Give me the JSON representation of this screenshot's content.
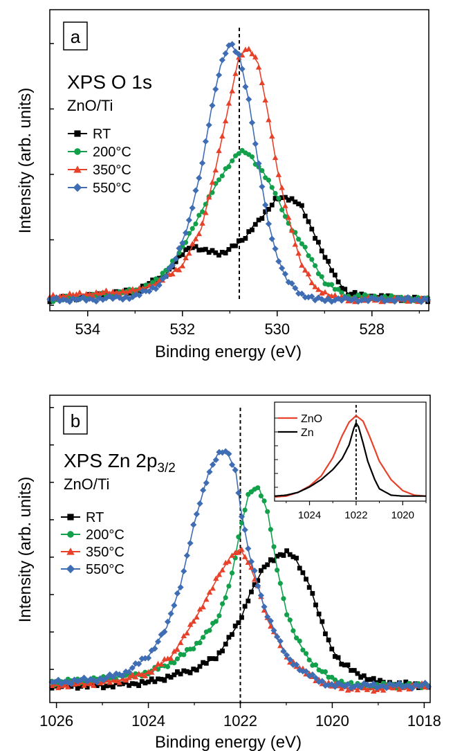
{
  "chart_data": [
    {
      "type": "line",
      "panel_label": "a",
      "title": "XPS O 1s",
      "subtitle": "ZnO/Ti",
      "xlabel": "Binding energy (eV)",
      "ylabel": "Intensity (arb. units)",
      "xlim": [
        534.8,
        526.8
      ],
      "x_reversed": true,
      "ylim": [
        0,
        100
      ],
      "x_ticks": [
        534,
        532,
        530,
        528
      ],
      "x_tick_labels": [
        "534",
        "532",
        "530",
        "528"
      ],
      "y_tick_labels_shown": false,
      "reference_line_x": 530.8,
      "legend_position": "left",
      "series": [
        {
          "name": "RT",
          "color": "#000000",
          "marker": "square",
          "x": [
            534.8,
            534,
            533,
            532.4,
            532,
            531.8,
            531.5,
            531.2,
            531,
            530.7,
            530.5,
            530.2,
            530,
            529.8,
            529.5,
            529.3,
            529,
            528.7,
            528.5,
            528,
            527,
            526.8
          ],
          "y": [
            2,
            3,
            5,
            10,
            18,
            21,
            19,
            18,
            20,
            23,
            28,
            33,
            38,
            38,
            35,
            28,
            17,
            8,
            4,
            3,
            2,
            2
          ]
        },
        {
          "name": "200°C",
          "color": "#12a04b",
          "marker": "circle",
          "x": [
            534.8,
            534,
            533,
            532.5,
            532,
            531.6,
            531.3,
            531,
            530.8,
            530.6,
            530.3,
            530,
            529.8,
            529.5,
            529.2,
            529,
            528.5,
            528,
            527,
            526.8
          ],
          "y": [
            2,
            3,
            5,
            9,
            20,
            33,
            42,
            50,
            54,
            53,
            47,
            38,
            30,
            22,
            14,
            8,
            3,
            3,
            2,
            2
          ]
        },
        {
          "name": "350°C",
          "color": "#e8412a",
          "marker": "triangle",
          "x": [
            534.8,
            534,
            533,
            532.5,
            532,
            531.6,
            531.3,
            531,
            530.8,
            530.6,
            530.4,
            530.2,
            530,
            529.8,
            529.5,
            529.2,
            528.8,
            528.5,
            528,
            527,
            526.8
          ],
          "y": [
            3,
            4,
            5,
            8,
            14,
            27,
            48,
            72,
            88,
            90,
            85,
            68,
            48,
            33,
            15,
            6,
            3,
            2,
            2,
            2,
            2
          ]
        },
        {
          "name": "550°C",
          "color": "#3f6db3",
          "marker": "diamond",
          "x": [
            534.8,
            534,
            533,
            532.5,
            532.2,
            531.9,
            531.6,
            531.4,
            531.2,
            531,
            530.8,
            530.6,
            530.4,
            530.2,
            530,
            529.8,
            529.5,
            529.2,
            528.8,
            528.5,
            528,
            527,
            526.8
          ],
          "y": [
            2,
            2,
            3,
            7,
            14,
            27,
            48,
            68,
            84,
            92,
            88,
            72,
            50,
            30,
            17,
            9,
            4,
            2,
            2,
            2,
            2,
            2,
            2
          ]
        }
      ]
    },
    {
      "type": "line",
      "panel_label": "b",
      "title": "XPS Zn 2p",
      "title_subscript": "3/2",
      "subtitle": "ZnO/Ti",
      "xlabel": "Binding energy (eV)",
      "ylabel": "Intensity (arb. units)",
      "xlim": [
        1026.1,
        1017.9
      ],
      "x_reversed": true,
      "ylim": [
        0,
        100
      ],
      "x_ticks": [
        1026,
        1024,
        1022,
        1020,
        1018
      ],
      "x_tick_labels": [
        "1026",
        "1024",
        "1022",
        "1020",
        "1018"
      ],
      "y_tick_labels_shown": false,
      "reference_line_x": 1022,
      "legend_position": "left",
      "series": [
        {
          "name": "RT",
          "color": "#000000",
          "marker": "square",
          "x": [
            1026,
            1025,
            1024,
            1023.5,
            1023,
            1022.5,
            1022,
            1021.8,
            1021.5,
            1021.2,
            1021,
            1020.8,
            1020.5,
            1020.2,
            1020,
            1019.8,
            1019.5,
            1019,
            1018
          ],
          "y": [
            2,
            2,
            3,
            5,
            7,
            11,
            22,
            30,
            38,
            42,
            43,
            41,
            33,
            20,
            13,
            9,
            6,
            3,
            2
          ]
        },
        {
          "name": "200°C",
          "color": "#12a04b",
          "marker": "circle",
          "x": [
            1026,
            1025,
            1024,
            1023.5,
            1023,
            1022.5,
            1022.2,
            1022,
            1021.8,
            1021.6,
            1021.4,
            1021.2,
            1021,
            1020.8,
            1020.5,
            1020.2,
            1020,
            1019.5,
            1019,
            1018
          ],
          "y": [
            3,
            4,
            6,
            9,
            14,
            22,
            35,
            50,
            62,
            63,
            55,
            38,
            25,
            17,
            10,
            6,
            4,
            2,
            2,
            2
          ]
        },
        {
          "name": "350°C",
          "color": "#e8412a",
          "marker": "triangle",
          "x": [
            1026,
            1025,
            1024.5,
            1024,
            1023.5,
            1023,
            1022.5,
            1022.2,
            1022,
            1021.8,
            1021.6,
            1021.4,
            1021,
            1020.6,
            1020.2,
            1020,
            1019.5,
            1019,
            1018
          ],
          "y": [
            2,
            3,
            4,
            6,
            11,
            22,
            35,
            42,
            44,
            39,
            32,
            22,
            11,
            6,
            3,
            2,
            1,
            1,
            2
          ]
        },
        {
          "name": "550°C",
          "color": "#3f6db3",
          "marker": "diamond",
          "x": [
            1026,
            1025,
            1024.5,
            1024,
            1023.6,
            1023.3,
            1023,
            1022.7,
            1022.5,
            1022.3,
            1022.1,
            1022,
            1021.8,
            1021.5,
            1021.2,
            1021,
            1020.6,
            1020.2,
            1020,
            1019.5,
            1019,
            1018
          ],
          "y": [
            3,
            4,
            6,
            11,
            20,
            33,
            52,
            67,
            73,
            74,
            68,
            57,
            42,
            27,
            17,
            11,
            6,
            3,
            2,
            2,
            2,
            2
          ]
        }
      ],
      "inset": {
        "xlim": [
          1025.5,
          1019
        ],
        "x_ticks": [
          1024,
          1022,
          1020
        ],
        "x_tick_labels": [
          "1024",
          "1022",
          "1020"
        ],
        "ylim": [
          0,
          100
        ],
        "reference_line_x": 1022,
        "legend_position": "top-left",
        "series": [
          {
            "name": "ZnO",
            "color": "#e8412a",
            "x": [
              1025.5,
              1025,
              1024.5,
              1024,
              1023.5,
              1023,
              1022.6,
              1022.3,
              1022,
              1021.7,
              1021.4,
              1021,
              1020.5,
              1020,
              1019.5,
              1019
            ],
            "y": [
              3,
              4,
              8,
              15,
              26,
              46,
              70,
              85,
              92,
              86,
              68,
              42,
              22,
              10,
              5,
              4
            ]
          },
          {
            "name": "Zn",
            "color": "#000000",
            "x": [
              1025.5,
              1025,
              1024.5,
              1024,
              1023.5,
              1023,
              1022.6,
              1022.3,
              1022.1,
              1022,
              1021.9,
              1021.7,
              1021.5,
              1021.2,
              1021,
              1020.5,
              1020,
              1019.5,
              1019
            ],
            "y": [
              4,
              5,
              8,
              14,
              22,
              33,
              45,
              60,
              78,
              84,
              80,
              62,
              42,
              22,
              12,
              5,
              4,
              4,
              4
            ]
          }
        ]
      }
    }
  ]
}
